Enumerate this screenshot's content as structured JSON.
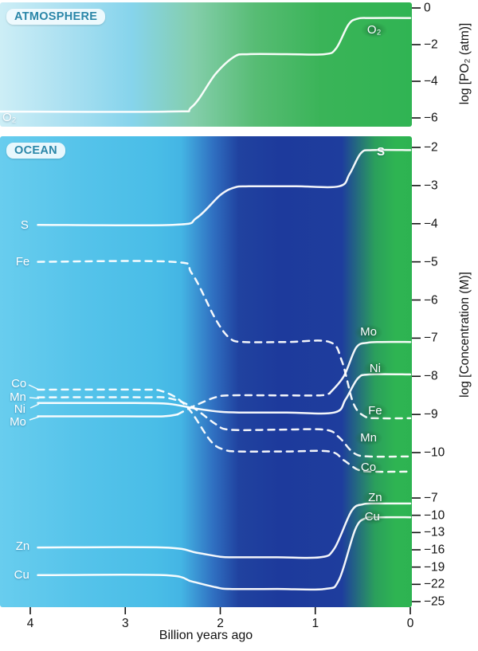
{
  "ui": {
    "panel_badges": {
      "atmosphere": "ATMOSPHERE",
      "ocean": "OCEAN"
    },
    "colors": {
      "atm_gradient_left": "#cdeef6",
      "atm_gradient_right": "#30b453",
      "ocean_gradient_left": "#5cc6ec",
      "ocean_gradient_mid": "#1e3c9d",
      "ocean_gradient_right": "#2db351",
      "curve": "#ffffff",
      "badge_glow": "#175c2c",
      "panel_badge_text": "#2a86a8"
    }
  },
  "chart_data": {
    "type": "line",
    "xlabel": "Billion years ago",
    "x_ticks": [
      4,
      3,
      2,
      1,
      0
    ],
    "x_range": [
      4.35,
      0
    ],
    "axes": {
      "atm": {
        "title": "log [PO₂ (atm)]",
        "ticks": [
          0,
          -2,
          -4,
          -6
        ],
        "range": [
          0,
          -6
        ]
      },
      "ocean": {
        "title": "log [Concentration (M)]",
        "ticks": [
          -2,
          -3,
          -4,
          -5,
          -6,
          -7,
          -8,
          -9,
          -10
        ],
        "range": [
          -2,
          -10
        ]
      },
      "trace": {
        "title": "",
        "ticks": [
          -7,
          -10,
          -13,
          -16,
          -19,
          -22,
          -25
        ],
        "range": [
          -7,
          -25
        ]
      }
    },
    "series": [
      {
        "id": "o2-atmosphere",
        "name": "O₂",
        "scale": "atm",
        "segments": [
          {
            "dashed": false,
            "points": [
              [
                4.32,
                -5.65
              ],
              [
                2.55,
                -5.65
              ],
              [
                2.3,
                -5.4
              ],
              [
                2.05,
                -3.6
              ],
              [
                1.85,
                -2.65
              ],
              [
                1.7,
                -2.52
              ],
              [
                1.3,
                -2.52
              ],
              [
                0.9,
                -2.52
              ],
              [
                0.78,
                -2.2
              ],
              [
                0.65,
                -0.9
              ],
              [
                0.55,
                -0.58
              ],
              [
                0.4,
                -0.55
              ],
              [
                0,
                -0.55
              ]
            ]
          }
        ]
      },
      {
        "id": "s",
        "name": "S",
        "scale": "ocean",
        "segments": [
          {
            "dashed": false,
            "points": [
              [
                3.92,
                -4.03
              ],
              [
                2.5,
                -4.03
              ],
              [
                2.25,
                -3.85
              ],
              [
                2.0,
                -3.25
              ],
              [
                1.85,
                -3.05
              ],
              [
                1.7,
                -3.02
              ],
              [
                1.2,
                -3.02
              ],
              [
                0.75,
                -3.02
              ],
              [
                0.64,
                -2.7
              ],
              [
                0.52,
                -2.15
              ],
              [
                0.4,
                -2.07
              ],
              [
                0,
                -2.07
              ]
            ]
          }
        ]
      },
      {
        "id": "fe",
        "name": "Fe",
        "scale": "ocean",
        "segments": [
          {
            "dashed": true,
            "points": [
              [
                3.92,
                -5.0
              ],
              [
                2.5,
                -5.0
              ],
              [
                2.3,
                -5.3
              ],
              [
                2.05,
                -6.5
              ],
              [
                1.9,
                -7.0
              ],
              [
                1.75,
                -7.1
              ],
              [
                1.3,
                -7.1
              ],
              [
                0.85,
                -7.1
              ],
              [
                0.72,
                -7.6
              ],
              [
                0.6,
                -8.7
              ],
              [
                0.48,
                -9.05
              ],
              [
                0.33,
                -9.1
              ],
              [
                0,
                -9.1
              ]
            ]
          }
        ]
      },
      {
        "id": "mo",
        "name": "Mo",
        "scale": "ocean",
        "segments": [
          {
            "dashed": false,
            "points": [
              [
                3.92,
                -9.05
              ],
              [
                3.0,
                -9.05
              ],
              [
                2.6,
                -9.05
              ],
              [
                2.45,
                -9.0
              ]
            ]
          },
          {
            "dashed": true,
            "points": [
              [
                2.45,
                -9.0
              ],
              [
                2.25,
                -8.75
              ],
              [
                2.05,
                -8.55
              ],
              [
                1.9,
                -8.5
              ],
              [
                1.4,
                -8.5
              ],
              [
                0.95,
                -8.5
              ],
              [
                0.85,
                -8.45
              ]
            ]
          },
          {
            "dashed": false,
            "points": [
              [
                0.85,
                -8.45
              ],
              [
                0.7,
                -8.0
              ],
              [
                0.57,
                -7.25
              ],
              [
                0.45,
                -7.12
              ],
              [
                0.3,
                -7.1
              ],
              [
                0,
                -7.1
              ]
            ]
          }
        ]
      },
      {
        "id": "ni",
        "name": "Ni",
        "scale": "ocean",
        "segments": [
          {
            "dashed": false,
            "points": [
              [
                3.92,
                -8.7
              ],
              [
                2.9,
                -8.7
              ],
              [
                2.55,
                -8.72
              ],
              [
                2.25,
                -8.85
              ],
              [
                2.0,
                -8.93
              ],
              [
                1.8,
                -8.95
              ],
              [
                1.3,
                -8.95
              ],
              [
                0.8,
                -8.95
              ],
              [
                0.68,
                -8.6
              ],
              [
                0.55,
                -8.05
              ],
              [
                0.42,
                -7.95
              ],
              [
                0,
                -7.95
              ]
            ]
          }
        ]
      },
      {
        "id": "mn",
        "name": "Mn",
        "scale": "ocean",
        "segments": [
          {
            "dashed": true,
            "points": [
              [
                3.92,
                -8.55
              ],
              [
                2.85,
                -8.55
              ],
              [
                2.55,
                -8.57
              ],
              [
                2.3,
                -8.8
              ],
              [
                2.05,
                -9.25
              ],
              [
                1.9,
                -9.4
              ],
              [
                1.4,
                -9.4
              ],
              [
                0.9,
                -9.4
              ],
              [
                0.75,
                -9.6
              ],
              [
                0.6,
                -10.0
              ],
              [
                0.45,
                -10.1
              ],
              [
                0,
                -10.1
              ]
            ]
          }
        ]
      },
      {
        "id": "co",
        "name": "Co",
        "scale": "ocean",
        "segments": [
          {
            "dashed": true,
            "points": [
              [
                3.92,
                -8.35
              ],
              [
                2.9,
                -8.35
              ],
              [
                2.6,
                -8.4
              ],
              [
                2.35,
                -8.8
              ],
              [
                2.1,
                -9.7
              ],
              [
                1.95,
                -9.93
              ],
              [
                1.8,
                -9.97
              ],
              [
                1.3,
                -9.97
              ],
              [
                0.85,
                -9.97
              ],
              [
                0.7,
                -10.2
              ],
              [
                0.55,
                -10.45
              ],
              [
                0.4,
                -10.5
              ],
              [
                0,
                -10.5
              ]
            ]
          }
        ]
      },
      {
        "id": "zn",
        "name": "Zn",
        "scale": "trace",
        "segments": [
          {
            "dashed": false,
            "points": [
              [
                3.92,
                -15.6
              ],
              [
                2.6,
                -15.6
              ],
              [
                2.25,
                -16.5
              ],
              [
                2.0,
                -17.2
              ],
              [
                1.85,
                -17.3
              ],
              [
                1.4,
                -17.3
              ],
              [
                0.95,
                -17.3
              ],
              [
                0.8,
                -15.8
              ],
              [
                0.62,
                -9.3
              ],
              [
                0.5,
                -8.1
              ],
              [
                0.35,
                -7.95
              ],
              [
                0,
                -7.95
              ]
            ]
          }
        ]
      },
      {
        "id": "cu",
        "name": "Cu",
        "scale": "trace",
        "segments": [
          {
            "dashed": false,
            "points": [
              [
                3.92,
                -20.4
              ],
              [
                2.6,
                -20.4
              ],
              [
                2.3,
                -21.5
              ],
              [
                2.05,
                -22.5
              ],
              [
                1.9,
                -22.8
              ],
              [
                1.4,
                -22.8
              ],
              [
                0.9,
                -22.8
              ],
              [
                0.75,
                -21.2
              ],
              [
                0.58,
                -12.5
              ],
              [
                0.47,
                -10.5
              ],
              [
                0.32,
                -10.35
              ],
              [
                0,
                -10.35
              ]
            ]
          }
        ]
      }
    ],
    "labels_left": [
      {
        "text": "O₂",
        "scale": "atm",
        "g": 4.22,
        "v": -5.98
      },
      {
        "text": "S",
        "scale": "ocean",
        "g": 4.06,
        "v": -4.05
      },
      {
        "text": "Fe",
        "scale": "ocean",
        "g": 4.08,
        "v": -5.0
      },
      {
        "text": "Co",
        "scale": "ocean",
        "g": 4.12,
        "v": -8.2
      },
      {
        "text": "Mn",
        "scale": "ocean",
        "g": 4.13,
        "v": -8.55
      },
      {
        "text": "Ni",
        "scale": "ocean",
        "g": 4.11,
        "v": -8.87
      },
      {
        "text": "Mo",
        "scale": "ocean",
        "g": 4.13,
        "v": -9.2
      },
      {
        "text": "Zn",
        "scale": "trace",
        "g": 4.08,
        "v": -15.45
      },
      {
        "text": "Cu",
        "scale": "trace",
        "g": 4.09,
        "v": -20.45
      }
    ],
    "labels_right": [
      {
        "text": "O₂",
        "scale": "atm",
        "g": 0.38,
        "v": -1.2,
        "badge": true,
        "bold": false
      },
      {
        "text": "S",
        "scale": "ocean",
        "g": 0.31,
        "v": -2.12,
        "badge": false,
        "bold": true
      },
      {
        "text": "Mo",
        "scale": "ocean",
        "g": 0.44,
        "v": -6.85,
        "badge": true,
        "bold": false
      },
      {
        "text": "Ni",
        "scale": "ocean",
        "g": 0.37,
        "v": -7.8,
        "badge": true,
        "bold": false
      },
      {
        "text": "Fe",
        "scale": "ocean",
        "g": 0.37,
        "v": -8.92,
        "badge": true,
        "bold": false
      },
      {
        "text": "Mn",
        "scale": "ocean",
        "g": 0.44,
        "v": -9.62,
        "badge": true,
        "bold": false
      },
      {
        "text": "Co",
        "scale": "ocean",
        "g": 0.44,
        "v": -10.4,
        "badge": true,
        "bold": false
      },
      {
        "text": "Zn",
        "scale": "trace",
        "g": 0.37,
        "v": -7.05,
        "badge": true,
        "bold": false
      },
      {
        "text": "Cu",
        "scale": "trace",
        "g": 0.4,
        "v": -10.32,
        "badge": true,
        "bold": false
      }
    ],
    "label_pointers": [
      [
        36,
        483,
        49,
        489
      ],
      [
        37,
        499,
        49,
        500
      ],
      [
        38,
        512,
        49,
        507
      ],
      [
        37,
        527,
        49,
        523
      ]
    ]
  }
}
